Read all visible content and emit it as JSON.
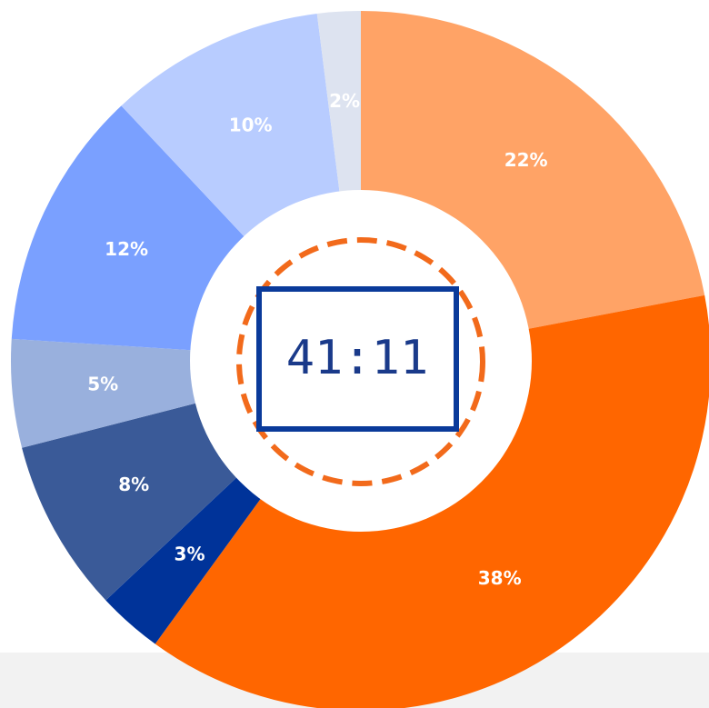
{
  "chart_data": {
    "type": "donut",
    "values": [
      22,
      38,
      3,
      8,
      5,
      12,
      10,
      2
    ],
    "value_labels": [
      "22%",
      "38%",
      "3%",
      "8%",
      "5%",
      "12%",
      "10%",
      "2%"
    ],
    "colors": [
      "#ffa366",
      "#ff6600",
      "#003399",
      "#3a5a98",
      "#99b0dd",
      "#7aa0ff",
      "#b8ccff",
      "#dde3f0"
    ]
  },
  "timer": "41:11"
}
